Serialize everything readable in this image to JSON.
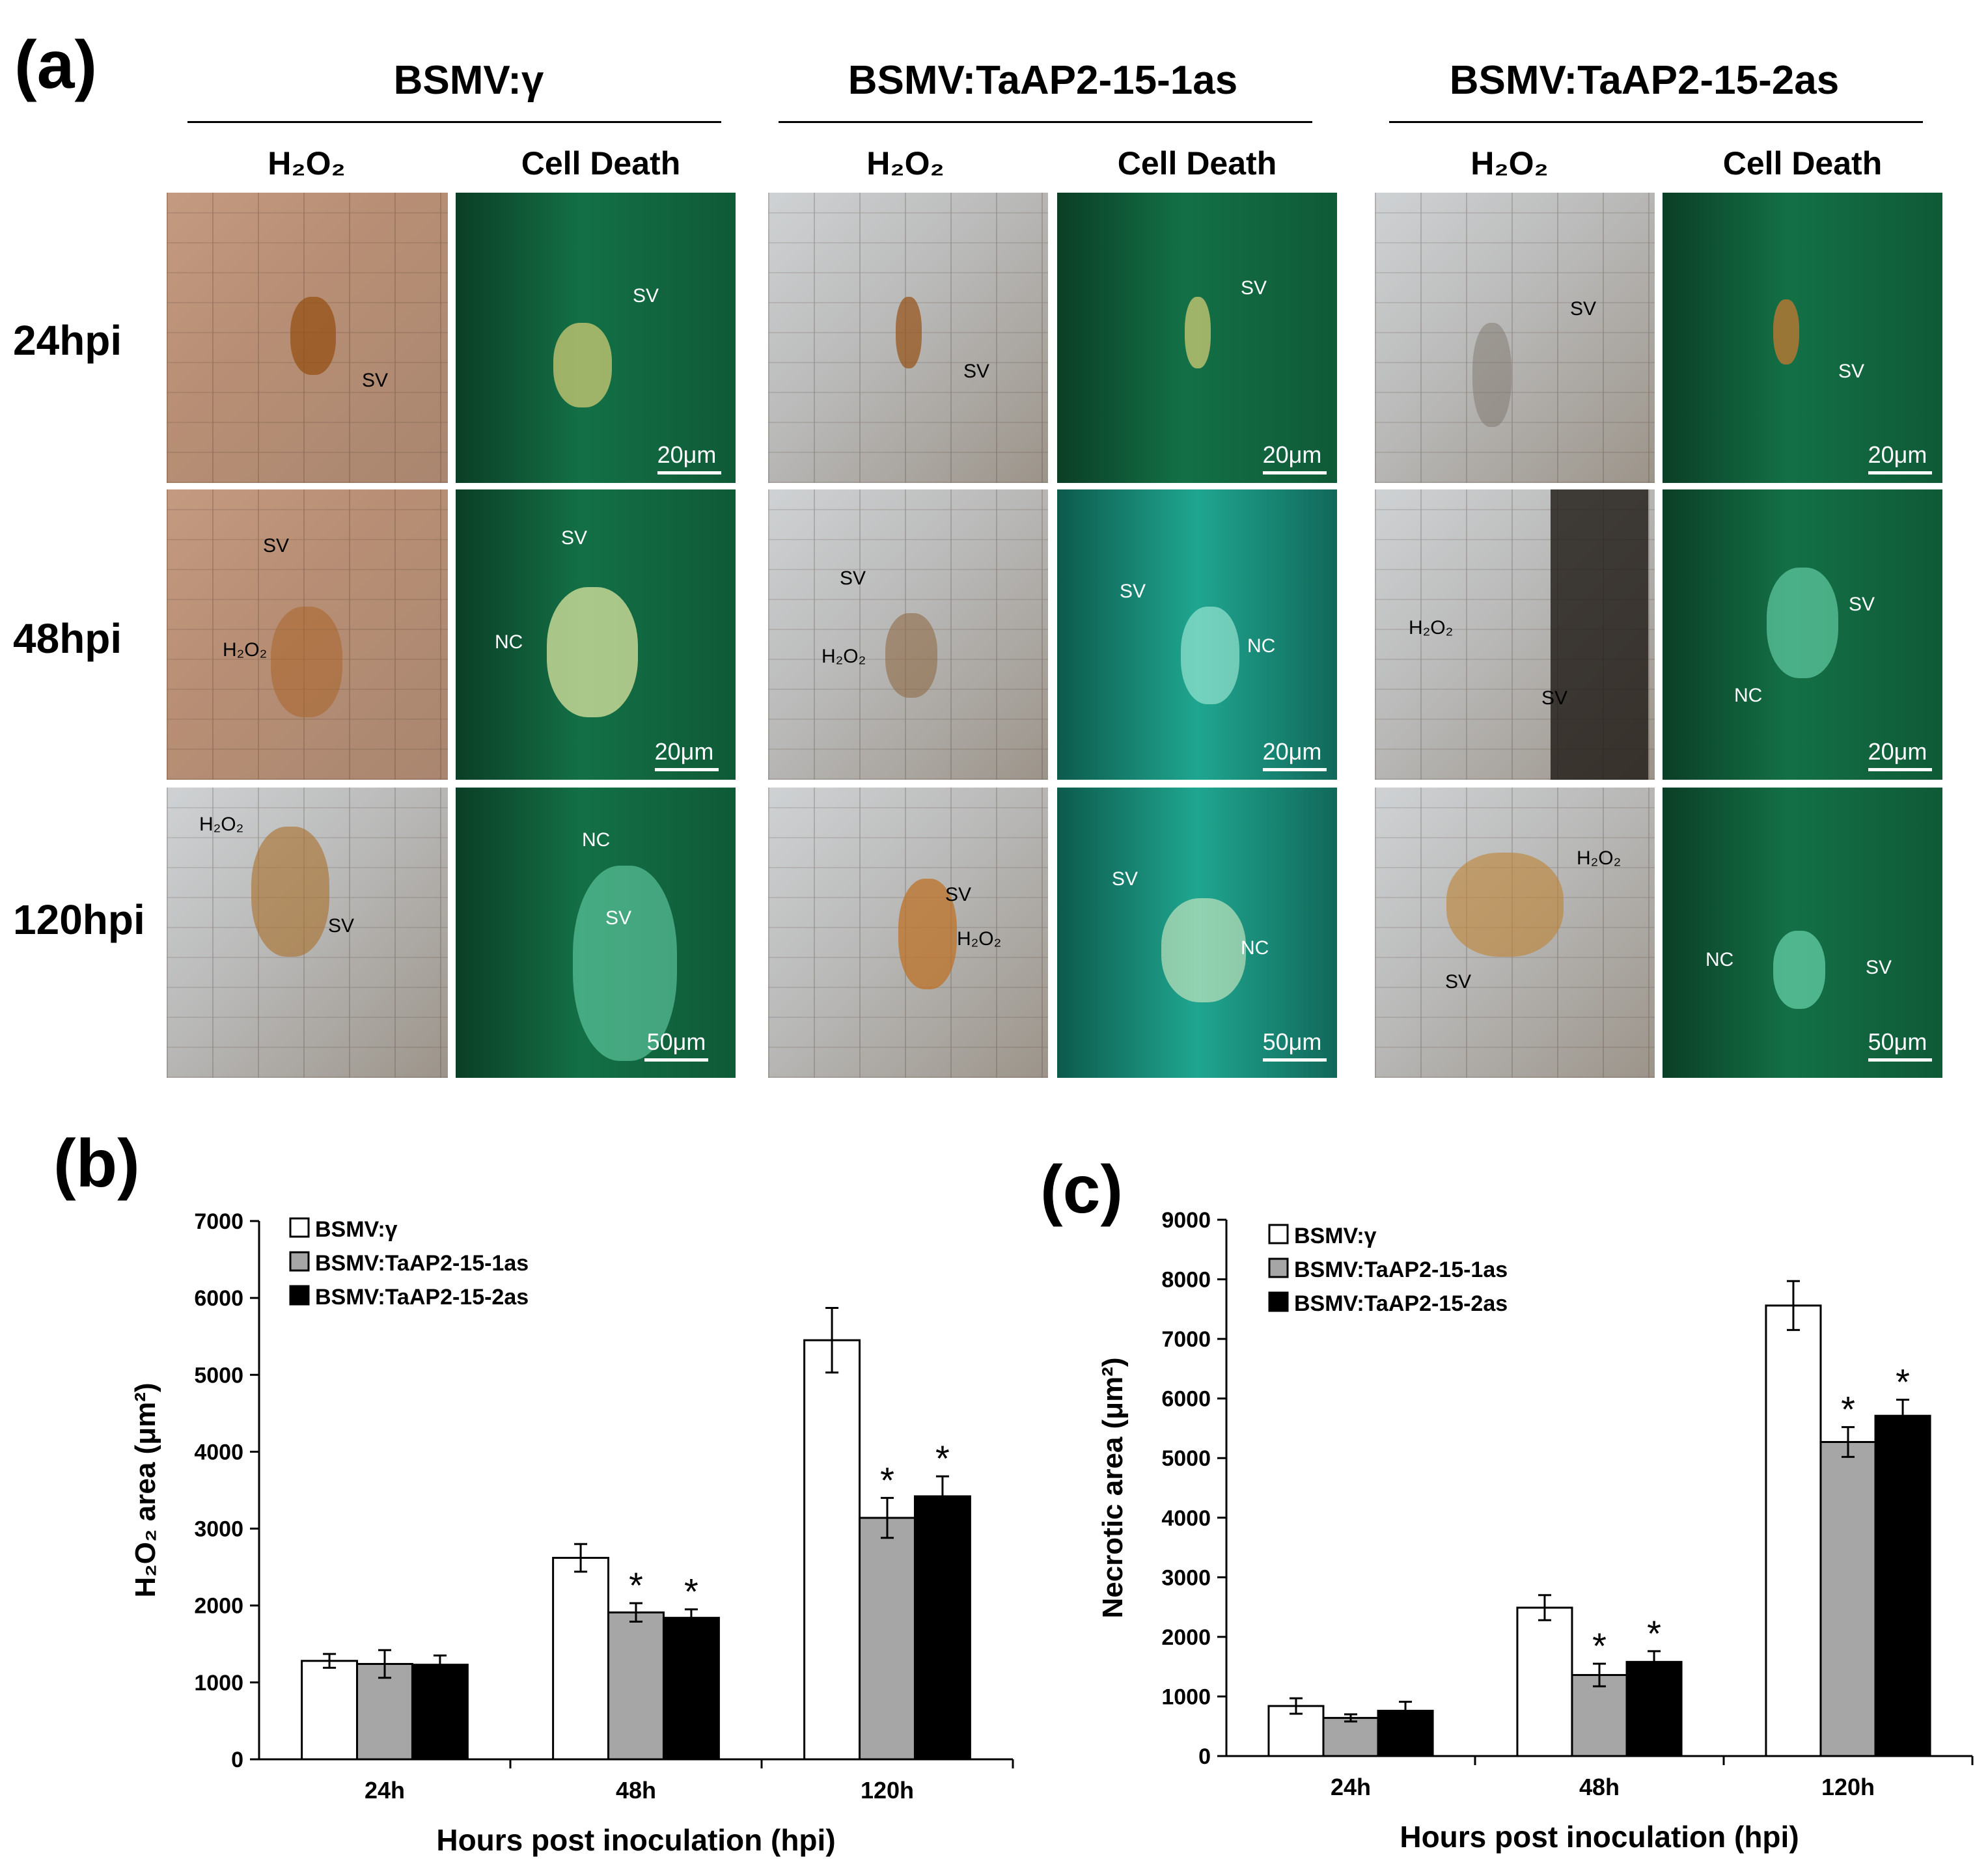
{
  "panel_a": {
    "label": "(a)",
    "groups": [
      {
        "title": "BSMV:γ",
        "col1": "H₂O₂",
        "col2": "Cell Death"
      },
      {
        "title": "BSMV:TaAP2-15-1as",
        "col1": "H₂O₂",
        "col2": "Cell Death"
      },
      {
        "title": "BSMV:TaAP2-15-2as",
        "col1": "H₂O₂",
        "col2": "Cell Death"
      }
    ],
    "rows": [
      "24hpi",
      "48hpi",
      "120hpi"
    ],
    "scale_bars": [
      "20μm",
      "20μm",
      "50μm"
    ],
    "annotations": {
      "sv": "SV",
      "nc": "NC",
      "h2o2": "H₂O₂"
    }
  },
  "panel_b": {
    "label": "(b)"
  },
  "panel_c": {
    "label": "(c)"
  },
  "chart_data": [
    {
      "type": "bar",
      "title": "",
      "categories": [
        "24h",
        "48h",
        "120h"
      ],
      "series": [
        {
          "name": "BSMV:γ",
          "color": "#ffffff",
          "values": [
            1280,
            2620,
            5450
          ],
          "errors": [
            90,
            180,
            420
          ],
          "significant": [
            false,
            false,
            false
          ]
        },
        {
          "name": "BSMV:TaAP2-15-1as",
          "color": "#a6a6a6",
          "values": [
            1240,
            1910,
            3140
          ],
          "errors": [
            180,
            120,
            260
          ],
          "significant": [
            false,
            true,
            true
          ]
        },
        {
          "name": "BSMV:TaAP2-15-2as",
          "color": "#000000",
          "values": [
            1230,
            1840,
            3420
          ],
          "errors": [
            120,
            110,
            260
          ],
          "significant": [
            false,
            true,
            true
          ]
        }
      ],
      "xlabel": "Hours post inoculation (hpi)",
      "ylabel": "H₂O₂ area (μm²)",
      "ylim": [
        0,
        7000
      ],
      "yticks": [
        0,
        1000,
        2000,
        3000,
        4000,
        5000,
        6000,
        7000
      ],
      "significance_marker": "*",
      "legend_position": "top-left"
    },
    {
      "type": "bar",
      "title": "",
      "categories": [
        "24h",
        "48h",
        "120h"
      ],
      "series": [
        {
          "name": "BSMV:γ",
          "color": "#ffffff",
          "values": [
            840,
            2490,
            7560
          ],
          "errors": [
            130,
            210,
            410
          ],
          "significant": [
            false,
            false,
            false
          ]
        },
        {
          "name": "BSMV:TaAP2-15-1as",
          "color": "#a6a6a6",
          "values": [
            640,
            1360,
            5270
          ],
          "errors": [
            60,
            190,
            250
          ],
          "significant": [
            false,
            true,
            true
          ]
        },
        {
          "name": "BSMV:TaAP2-15-2as",
          "color": "#000000",
          "values": [
            760,
            1580,
            5710
          ],
          "errors": [
            150,
            180,
            270
          ],
          "significant": [
            false,
            true,
            true
          ]
        }
      ],
      "xlabel": "Hours post inoculation (hpi)",
      "ylabel": "Necrotic area (μm²)",
      "ylim": [
        0,
        9000
      ],
      "yticks": [
        0,
        1000,
        2000,
        3000,
        4000,
        5000,
        6000,
        7000,
        8000,
        9000
      ],
      "significance_marker": "*",
      "legend_position": "top-left"
    }
  ]
}
